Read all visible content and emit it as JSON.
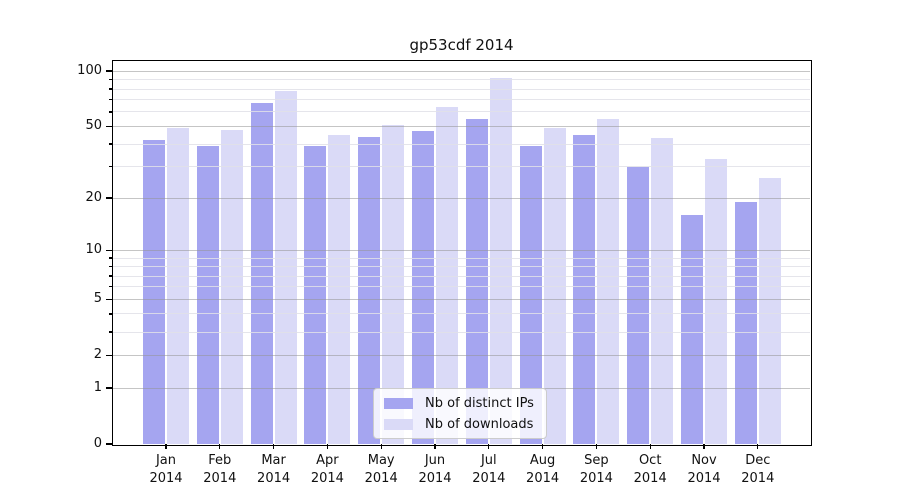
{
  "title": "gp53cdf 2014",
  "chart_data": {
    "type": "bar",
    "title": "gp53cdf 2014",
    "categories": [
      "Jan 2014",
      "Feb 2014",
      "Mar 2014",
      "Apr 2014",
      "May 2014",
      "Jun 2014",
      "Jul 2014",
      "Aug 2014",
      "Sep 2014",
      "Oct 2014",
      "Nov 2014",
      "Dec 2014"
    ],
    "month_labels": [
      "Jan",
      "Feb",
      "Mar",
      "Apr",
      "May",
      "Jun",
      "Jul",
      "Aug",
      "Sep",
      "Oct",
      "Nov",
      "Dec"
    ],
    "year_label": "2014",
    "series": [
      {
        "name": "Nb of distinct IPs",
        "color": "#a5a5f0",
        "values": [
          42,
          39,
          67,
          39,
          44,
          47,
          55,
          39,
          45,
          30,
          16,
          19
        ]
      },
      {
        "name": "Nb of downloads",
        "color": "#dadaf7",
        "values": [
          49,
          48,
          78,
          45,
          51,
          64,
          92,
          49,
          55,
          43,
          33,
          26
        ]
      }
    ],
    "xlabel": "",
    "ylabel": "",
    "y_axis": {
      "scale": "log1p",
      "major_ticks": [
        0,
        1,
        2,
        5,
        10,
        20,
        50,
        100
      ],
      "minor_ticks": [
        3,
        4,
        6,
        7,
        8,
        9,
        30,
        40,
        60,
        70,
        80,
        90
      ],
      "range_top": 114
    },
    "grid": true,
    "legend": {
      "position": "bottom-center",
      "entries": [
        "Nb of distinct IPs",
        "Nb of downloads"
      ]
    }
  }
}
